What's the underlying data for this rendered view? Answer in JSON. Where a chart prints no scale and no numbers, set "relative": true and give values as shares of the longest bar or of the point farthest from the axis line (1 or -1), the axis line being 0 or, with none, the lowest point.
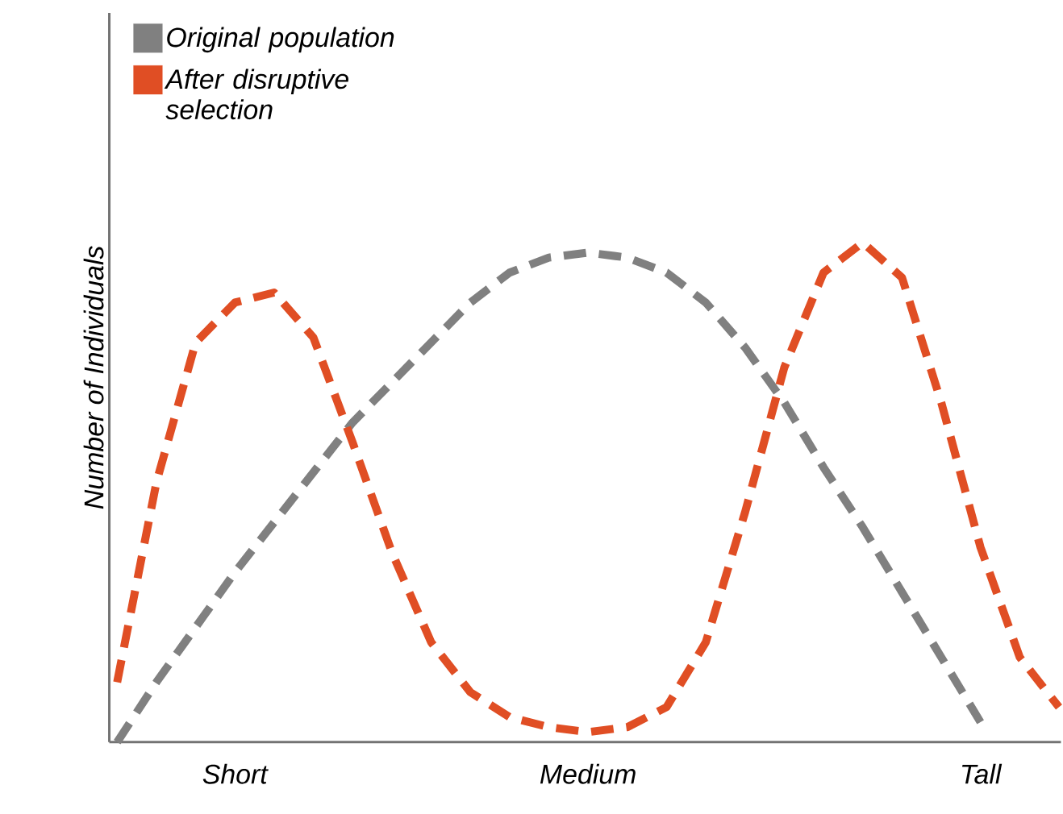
{
  "chart_data": {
    "type": "line",
    "ylabel": "Number of Individuals",
    "relative": true,
    "categories": [
      null,
      null,
      null,
      "Short",
      null,
      null,
      null,
      null,
      null,
      null,
      null,
      null,
      "Medium",
      null,
      null,
      null,
      null,
      null,
      null,
      null,
      null,
      null,
      "Tall",
      null,
      null
    ],
    "series": [
      {
        "name": "Original population",
        "color": "#808080",
        "values": [
          0,
          0.12,
          0.23,
          0.34,
          0.44,
          0.54,
          0.64,
          0.72,
          0.8,
          0.88,
          0.94,
          0.97,
          0.98,
          0.97,
          0.94,
          0.88,
          0.79,
          0.68,
          0.55,
          0.43,
          0.3,
          0.17,
          0.04,
          null,
          null
        ]
      },
      {
        "name": "After disruptive selection",
        "color": "#e04e24",
        "values": [
          0.12,
          0.52,
          0.8,
          0.88,
          0.9,
          0.81,
          0.6,
          0.38,
          0.2,
          0.1,
          0.05,
          0.03,
          0.02,
          0.03,
          0.07,
          0.2,
          0.46,
          0.75,
          0.94,
          1.0,
          0.93,
          0.68,
          0.39,
          0.17,
          0.07
        ]
      }
    ],
    "legend": "top left",
    "line_style": "dashed",
    "grid": false
  }
}
